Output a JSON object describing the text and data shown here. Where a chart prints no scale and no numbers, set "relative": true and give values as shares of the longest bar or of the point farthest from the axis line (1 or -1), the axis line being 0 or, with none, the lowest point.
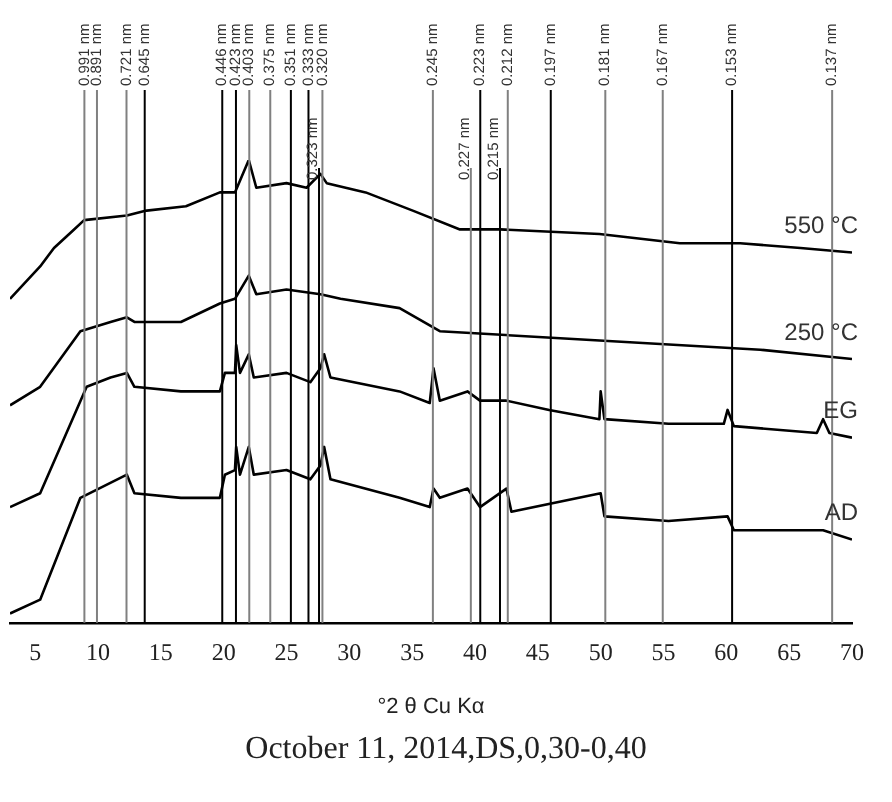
{
  "chart_data": {
    "type": "line",
    "relative": true,
    "xlabel": "°2 θ Cu Kα",
    "annotations": [
      "October 11, 2014,DS,0,30-0,40"
    ],
    "xlim": [
      3,
      70
    ],
    "xticks": [
      5,
      10,
      15,
      20,
      25,
      30,
      35,
      40,
      45,
      50,
      55,
      60,
      65,
      70
    ],
    "grid": false,
    "legend": false,
    "marker": "none",
    "line_style": "solid",
    "series": [
      {
        "name": "550 °C",
        "color": "#000000",
        "x": [
          3.0,
          5.4,
          6.5,
          8.1,
          8.9,
          12.3,
          13.7,
          17.0,
          19.7,
          20.9,
          22.0,
          22.6,
          25.0,
          26.6,
          27.7,
          28.2,
          31.3,
          35.1,
          38.8,
          42.0,
          49.9,
          56.3,
          61.1,
          65.9,
          70.0
        ],
        "values": [
          0.7,
          0.77,
          0.81,
          0.85,
          0.87,
          0.88,
          0.89,
          0.9,
          0.93,
          0.93,
          1.0,
          0.94,
          0.95,
          0.94,
          0.97,
          0.95,
          0.93,
          0.89,
          0.85,
          0.85,
          0.84,
          0.82,
          0.82,
          0.81,
          0.8
        ]
      },
      {
        "name": "250 °C",
        "color": "#000000",
        "x": [
          3.0,
          5.4,
          8.6,
          11.0,
          12.3,
          12.9,
          16.6,
          19.7,
          20.9,
          22.0,
          22.6,
          25.0,
          27.7,
          29.3,
          34.0,
          37.2,
          49.9,
          62.7,
          70.0
        ],
        "values": [
          0.47,
          0.51,
          0.63,
          0.65,
          0.66,
          0.65,
          0.65,
          0.69,
          0.7,
          0.75,
          0.71,
          0.72,
          0.71,
          0.7,
          0.68,
          0.63,
          0.61,
          0.59,
          0.57
        ]
      },
      {
        "name": "EG",
        "color": "#000000",
        "x": [
          3.0,
          5.4,
          9.1,
          11.0,
          12.3,
          12.9,
          16.6,
          19.7,
          20.1,
          20.9,
          21.0,
          21.3,
          22.0,
          22.4,
          25.0,
          26.9,
          27.7,
          28.0,
          28.5,
          34.0,
          36.4,
          36.7,
          37.2,
          39.4,
          40.4,
          42.5,
          45.9,
          49.9,
          50.0,
          50.3,
          55.4,
          59.8,
          60.1,
          60.6,
          67.2,
          67.7,
          68.2,
          70.0
        ],
        "values": [
          0.25,
          0.28,
          0.51,
          0.53,
          0.54,
          0.51,
          0.5,
          0.5,
          0.54,
          0.54,
          0.6,
          0.54,
          0.58,
          0.53,
          0.54,
          0.52,
          0.55,
          0.58,
          0.53,
          0.5,
          0.475,
          0.55,
          0.48,
          0.5,
          0.48,
          0.48,
          0.46,
          0.44,
          0.5,
          0.44,
          0.43,
          0.43,
          0.46,
          0.425,
          0.41,
          0.44,
          0.41,
          0.4
        ]
      },
      {
        "name": "AD",
        "color": "#000000",
        "x": [
          3.0,
          5.4,
          8.6,
          12.3,
          12.9,
          16.6,
          19.7,
          20.1,
          20.9,
          21.0,
          21.3,
          22.0,
          22.4,
          25.0,
          26.9,
          27.7,
          28.0,
          28.5,
          34.0,
          36.4,
          36.7,
          37.2,
          39.4,
          40.4,
          42.5,
          42.9,
          50.0,
          50.3,
          55.4,
          60.1,
          60.6,
          67.2,
          67.7,
          70.0
        ],
        "values": [
          0.02,
          0.05,
          0.27,
          0.32,
          0.28,
          0.27,
          0.27,
          0.32,
          0.33,
          0.38,
          0.32,
          0.38,
          0.32,
          0.33,
          0.31,
          0.34,
          0.38,
          0.31,
          0.27,
          0.25,
          0.29,
          0.27,
          0.29,
          0.25,
          0.29,
          0.24,
          0.28,
          0.23,
          0.22,
          0.23,
          0.2,
          0.2,
          0.2,
          0.18
        ]
      }
    ],
    "ref_lines": [
      {
        "axis": "x",
        "value": 8.92,
        "label": "0.991 nm",
        "color": "#808080"
      },
      {
        "axis": "x",
        "value": 9.92,
        "label": "0.891 nm",
        "color": "#808080"
      },
      {
        "axis": "x",
        "value": 12.27,
        "label": "0.721 nm",
        "color": "#808080"
      },
      {
        "axis": "x",
        "value": 13.72,
        "label": "0.645 nm",
        "color": "#000000"
      },
      {
        "axis": "x",
        "value": 19.89,
        "label": "0.446 nm",
        "color": "#000000"
      },
      {
        "axis": "x",
        "value": 20.98,
        "label": "0.423 nm",
        "color": "#000000"
      },
      {
        "axis": "x",
        "value": 22.04,
        "label": "0.403 nm",
        "color": "#808080"
      },
      {
        "axis": "x",
        "value": 23.71,
        "label": "0.375 nm",
        "color": "#808080"
      },
      {
        "axis": "x",
        "value": 25.35,
        "label": "0.351 nm",
        "color": "#000000"
      },
      {
        "axis": "x",
        "value": 26.75,
        "label": "0.333 nm",
        "color": "#000000"
      },
      {
        "axis": "x",
        "value": 27.59,
        "label": "0.323 nm",
        "color": "#000000"
      },
      {
        "axis": "x",
        "value": 27.86,
        "label": "0.320 nm",
        "color": "#808080"
      },
      {
        "axis": "x",
        "value": 36.65,
        "label": "0.245 nm",
        "color": "#808080"
      },
      {
        "axis": "x",
        "value": 39.67,
        "label": "0.227 nm",
        "color": "#808080"
      },
      {
        "axis": "x",
        "value": 40.42,
        "label": "0.223 nm",
        "color": "#000000"
      },
      {
        "axis": "x",
        "value": 41.99,
        "label": "0.215 nm",
        "color": "#000000"
      },
      {
        "axis": "x",
        "value": 42.61,
        "label": "0.212 nm",
        "color": "#808080"
      },
      {
        "axis": "x",
        "value": 46.03,
        "label": "0.197 nm",
        "color": "#000000"
      },
      {
        "axis": "x",
        "value": 50.37,
        "label": "0.181 nm",
        "color": "#808080"
      },
      {
        "axis": "x",
        "value": 54.94,
        "label": "0.167 nm",
        "color": "#808080"
      },
      {
        "axis": "x",
        "value": 60.46,
        "label": "0.153 nm",
        "color": "#000000"
      },
      {
        "axis": "x",
        "value": 68.42,
        "label": "0.137 nm",
        "color": "#808080"
      }
    ]
  }
}
